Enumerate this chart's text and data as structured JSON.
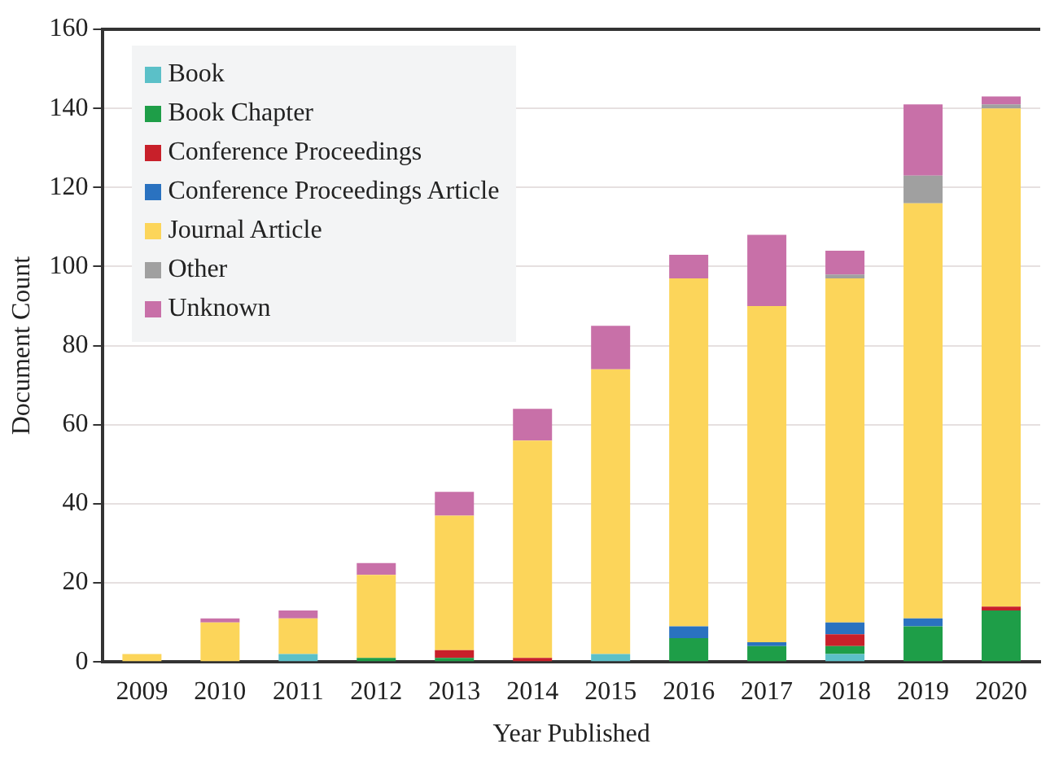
{
  "chart_data": {
    "type": "bar",
    "stacked": true,
    "xlabel": "Year Published",
    "ylabel": "Document Count",
    "categories": [
      "2009",
      "2010",
      "2011",
      "2012",
      "2013",
      "2014",
      "2015",
      "2016",
      "2017",
      "2018",
      "2019",
      "2020"
    ],
    "series": [
      {
        "name": "Book",
        "color": "#5bc0c8",
        "values": [
          0,
          0,
          2,
          0,
          0,
          0,
          2,
          0,
          0,
          2,
          0,
          0
        ]
      },
      {
        "name": "Book Chapter",
        "color": "#1e9e48",
        "values": [
          0,
          0,
          0,
          1,
          1,
          0,
          0,
          6,
          4,
          2,
          9,
          13
        ]
      },
      {
        "name": "Conference Proceedings",
        "color": "#c8202a",
        "values": [
          0,
          0,
          0,
          0,
          2,
          1,
          0,
          0,
          0,
          3,
          0,
          1
        ]
      },
      {
        "name": "Conference Proceedings Article",
        "color": "#2a72c0",
        "values": [
          0,
          0,
          0,
          0,
          0,
          0,
          0,
          3,
          1,
          3,
          2,
          0
        ]
      },
      {
        "name": "Journal Article",
        "color": "#fcd55a",
        "values": [
          2,
          10,
          9,
          21,
          34,
          55,
          72,
          88,
          85,
          87,
          105,
          126
        ]
      },
      {
        "name": "Other",
        "color": "#a0a0a0",
        "values": [
          0,
          0,
          0,
          0,
          0,
          0,
          0,
          0,
          0,
          1,
          7,
          1
        ]
      },
      {
        "name": "Unknown",
        "color": "#c870a8",
        "values": [
          0,
          1,
          2,
          3,
          6,
          8,
          11,
          6,
          18,
          6,
          18,
          2
        ]
      }
    ],
    "ylim": [
      0,
      160
    ],
    "yticks": [
      0,
      20,
      40,
      60,
      80,
      100,
      120,
      140,
      160
    ],
    "grid": "y",
    "legend": "top left"
  }
}
